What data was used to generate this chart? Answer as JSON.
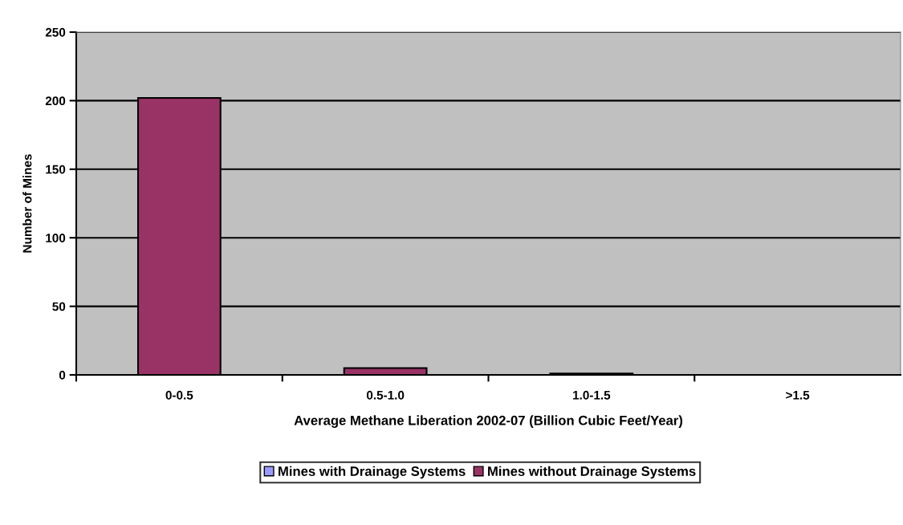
{
  "chart_data": {
    "type": "bar",
    "stacked": true,
    "xlabel": "Average Methane Liberation 2002-07 (Billion Cubic Feet/Year)",
    "ylabel": "Number of Mines",
    "categories": [
      "0-0.5",
      "0.5-1.0",
      "1.0-1.5",
      ">1.5"
    ],
    "series": [
      {
        "name": "Mines with Drainage Systems",
        "color": "#9999ff",
        "values": [
          0,
          0,
          0,
          0
        ]
      },
      {
        "name": "Mines without Drainage Systems",
        "color": "#993366",
        "values": [
          202,
          5,
          1,
          0
        ]
      }
    ],
    "ylim": [
      0,
      250
    ],
    "yticks": [
      0,
      50,
      100,
      150,
      200,
      250
    ],
    "grid": "y",
    "legend": "bottom"
  }
}
